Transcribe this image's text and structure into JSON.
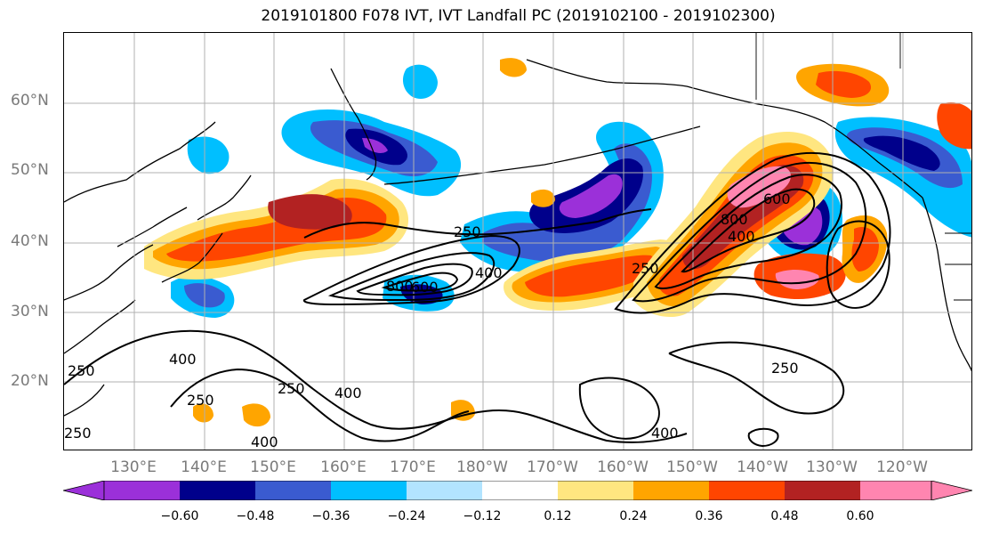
{
  "title": "2019101800 F078 IVT, IVT Landfall PC (2019102100 - 2019102300)",
  "lat_labels": [
    "60°N",
    "50°N",
    "40°N",
    "30°N",
    "20°N"
  ],
  "lon_labels": [
    "130°E",
    "140°E",
    "150°E",
    "160°E",
    "170°E",
    "180°W",
    "170°W",
    "160°W",
    "150°W",
    "140°W",
    "130°W",
    "120°W"
  ],
  "colorbar": {
    "ticks": [
      "−0.60",
      "−0.48",
      "−0.36",
      "−0.24",
      "−0.12",
      "0.12",
      "0.24",
      "0.36",
      "0.48",
      "0.60"
    ],
    "colors": [
      "#9b30d9",
      "#00008b",
      "#3a5bd0",
      "#00bfff",
      "#b2e4ff",
      "#ffffff",
      "#ffe680",
      "#ffa500",
      "#ff4500",
      "#b22222",
      "#ff85b0"
    ]
  },
  "contour_labels": [
    "250",
    "400",
    "600",
    "800",
    "250",
    "400",
    "600",
    "800",
    "250",
    "400",
    "250",
    "250",
    "400",
    "250",
    "400",
    "250",
    "400"
  ],
  "colors": {
    "purple": "#9b30d9",
    "navy": "#00008b",
    "blue": "#3a5bd0",
    "sky": "#00bfff",
    "lightblue": "#b2e4ff",
    "yellow": "#ffe680",
    "orange": "#ffa500",
    "redorange": "#ff4500",
    "darkred": "#b22222",
    "pink": "#ff85b0",
    "grid": "#b0b0b0",
    "axis_label": "#7a7a7a"
  }
}
